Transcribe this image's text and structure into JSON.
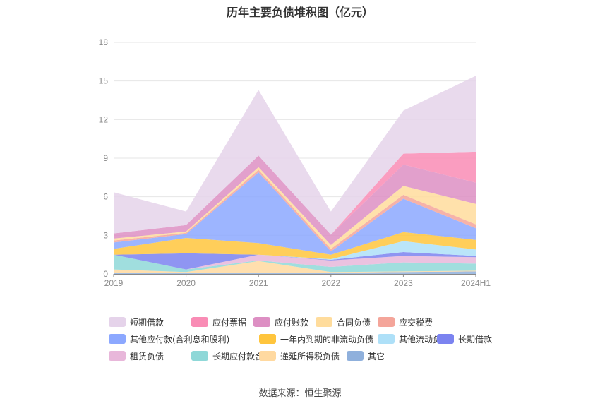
{
  "chart_data": {
    "type": "area",
    "stacked": true,
    "title": "历年主要负债堆积图（亿元）",
    "categories": [
      "2019",
      "2020",
      "2021",
      "2022",
      "2023",
      "2024H1"
    ],
    "ylim": [
      0,
      18
    ],
    "yticks": [
      "0",
      "3",
      "6",
      "9",
      "12",
      "15",
      "18"
    ],
    "grid": true,
    "legend_position": "bottom",
    "series": [
      {
        "name": "其它",
        "color": "#8fb0dc",
        "values": [
          0.1,
          0.1,
          0.1,
          0.1,
          0.15,
          0.2
        ]
      },
      {
        "name": "递延所得税负债",
        "color": "#ffd9a0",
        "values": [
          0.25,
          0.05,
          0.9,
          0.05,
          0.05,
          0.05
        ]
      },
      {
        "name": "长期应付款合计",
        "color": "#8fd8d8",
        "values": [
          1.15,
          0.2,
          0.05,
          0.4,
          0.7,
          0.55
        ]
      },
      {
        "name": "租赁负债",
        "color": "#e8b7da",
        "values": [
          0.0,
          0.0,
          0.45,
          0.5,
          0.5,
          0.5
        ]
      },
      {
        "name": "长期借款",
        "color": "#7b83f0",
        "values": [
          0.0,
          1.25,
          0.0,
          0.05,
          0.3,
          0.1
        ]
      },
      {
        "name": "其他流动负债",
        "color": "#aee0f8",
        "values": [
          0.0,
          0.0,
          0.0,
          0.05,
          0.85,
          0.5
        ]
      },
      {
        "name": "一年内到期的非流动负债",
        "color": "#ffc53d",
        "values": [
          0.45,
          1.2,
          0.9,
          0.35,
          0.7,
          0.75
        ]
      },
      {
        "name": "其他应付款(含利息和股利)",
        "color": "#8ca8ff",
        "values": [
          0.5,
          0.3,
          5.5,
          0.25,
          2.6,
          0.9
        ]
      },
      {
        "name": "应交税费",
        "color": "#f4a59a",
        "values": [
          0.15,
          0.1,
          0.2,
          0.2,
          0.3,
          0.3
        ]
      },
      {
        "name": "合同负债",
        "color": "#ffdc9c",
        "values": [
          0.15,
          0.1,
          0.2,
          0.3,
          0.7,
          1.6
        ]
      },
      {
        "name": "应付账款",
        "color": "#dd8fc3",
        "values": [
          0.4,
          0.5,
          0.9,
          0.8,
          1.65,
          1.65
        ]
      },
      {
        "name": "应付票据",
        "color": "#f98cb5",
        "values": [
          0.0,
          0.0,
          0.0,
          0.0,
          0.85,
          2.4
        ]
      },
      {
        "name": "短期借款",
        "color": "#e5d3ea",
        "values": [
          3.2,
          1.05,
          5.1,
          1.8,
          3.35,
          5.9
        ]
      }
    ],
    "legend_order": [
      "短期借款",
      "应付票据",
      "应付账款",
      "合同负债",
      "应交税费",
      "其他应付款(含利息和股利)",
      "一年内到期的非流动负债",
      "其他流动负债",
      "长期借款",
      "租赁负债",
      "长期应付款合计",
      "递延所得税负债",
      "其它"
    ]
  },
  "source_note": "数据来源：恒生聚源"
}
